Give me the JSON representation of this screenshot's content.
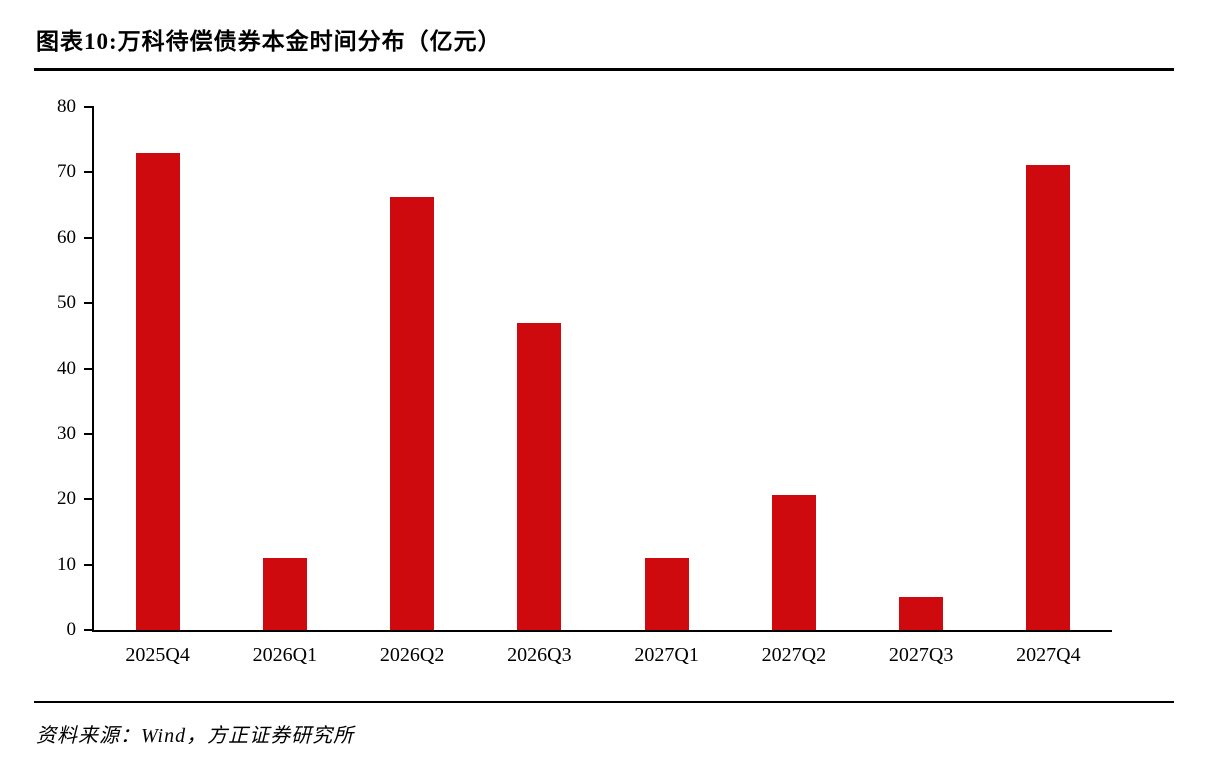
{
  "title": "图表10:万科待偿债券本金时间分布（亿元）",
  "source": {
    "text": "资料来源：Wind，方正证券研究所"
  },
  "colors": {
    "bar": "#cf0a0e",
    "axis": "#000000",
    "rule": "#000000",
    "background": "#ffffff"
  },
  "chart_data": {
    "type": "bar",
    "title": "图表10:万科待偿债券本金时间分布（亿元）",
    "categories": [
      "2025Q4",
      "2026Q1",
      "2026Q2",
      "2026Q3",
      "2027Q1",
      "2027Q2",
      "2027Q3",
      "2027Q4"
    ],
    "values": [
      73,
      11,
      66.2,
      47,
      11,
      20.7,
      5,
      71.2
    ],
    "xlabel": "",
    "ylabel": "",
    "ylim": [
      0,
      80
    ],
    "ytick_step": 10,
    "ytick_labels": [
      "0",
      "10",
      "20",
      "30",
      "40",
      "50",
      "60",
      "70",
      "80"
    ],
    "grid": false,
    "legend": "none",
    "bar_color": "#cf0a0e",
    "source": "资料来源：Wind，方正证券研究所"
  }
}
